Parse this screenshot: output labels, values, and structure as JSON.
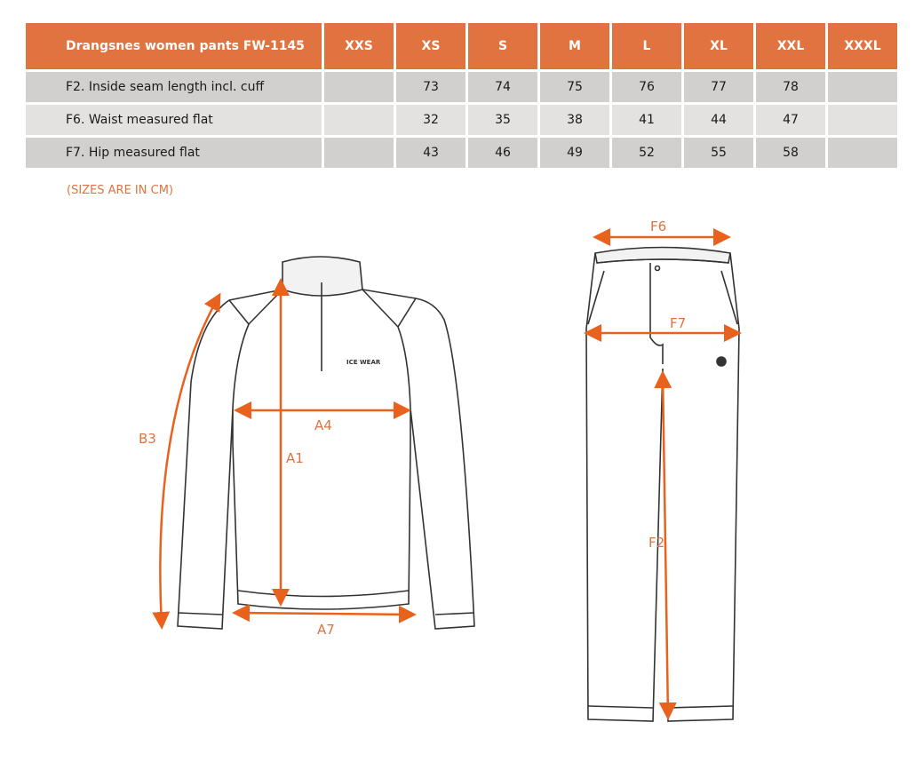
{
  "table": {
    "title": "Drangsnes women pants FW-1145",
    "sizes": [
      "XXS",
      "XS",
      "S",
      "M",
      "L",
      "XL",
      "XXL",
      "XXXL"
    ],
    "rows": [
      {
        "label": "F2. Inside seam length incl. cuff",
        "values": [
          "",
          "73",
          "74",
          "75",
          "76",
          "77",
          "78",
          ""
        ]
      },
      {
        "label": "F6. Waist measured flat",
        "values": [
          "",
          "32",
          "35",
          "38",
          "41",
          "44",
          "47",
          ""
        ]
      },
      {
        "label": "F7. Hip measured flat",
        "values": [
          "",
          "43",
          "46",
          "49",
          "52",
          "55",
          "58",
          ""
        ]
      }
    ]
  },
  "note": "(SIZES ARE IN CM)",
  "diagram": {
    "jacket_labels": {
      "b3": "B3",
      "a1": "A1",
      "a4": "A4",
      "a7": "A7"
    },
    "pants_labels": {
      "f6": "F6",
      "f7": "F7",
      "f2": "F2"
    },
    "logo": "ICE WEAR"
  },
  "colors": {
    "accent": "#E07340",
    "row_dark": "#D1D0CE",
    "row_light": "#E3E2E0"
  }
}
